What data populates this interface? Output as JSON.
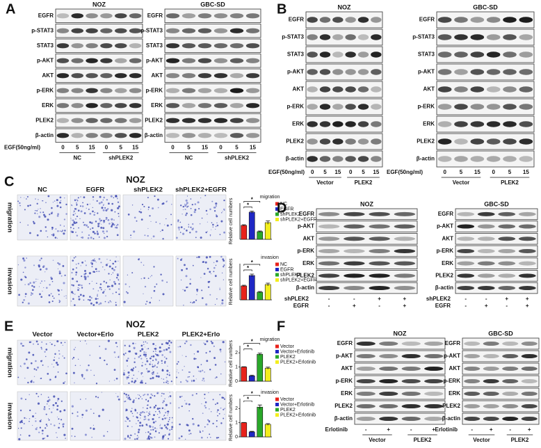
{
  "A": {
    "letter": "A",
    "blots": [
      {
        "title": "NOZ",
        "proteins": [
          "EGFR",
          "p-STAT3",
          "STAT3",
          "p-AKT",
          "AKT",
          "p-ERK",
          "ERK",
          "PLEK2",
          "β-actin"
        ],
        "treatment": "EGF(50ng/ml)",
        "lanes": [
          0,
          5,
          15,
          0,
          5,
          15
        ],
        "groups": [
          "NC",
          "shPLEK2"
        ]
      },
      {
        "title": "GBC-SD",
        "proteins": [
          "EGFR",
          "p-STAT3",
          "STAT3",
          "p-AKT",
          "AKT",
          "p-ERK",
          "ERK",
          "PLEK2",
          "β-actin"
        ],
        "lanes": [
          0,
          5,
          15,
          0,
          5,
          15
        ],
        "groups": [
          "NC",
          "shPLEK2"
        ]
      }
    ]
  },
  "B": {
    "letter": "B",
    "blots": [
      {
        "title": "NOZ",
        "proteins": [
          "EGFR",
          "p-STAT3",
          "STAT3",
          "p-AKT",
          "AKT",
          "p-ERK",
          "ERK",
          "PLEK2",
          "β-actin"
        ],
        "treatment": "EGF(50ng/ml)",
        "lanes": [
          0,
          5,
          15,
          0,
          5,
          15
        ],
        "groups": [
          "Vector",
          "PLEK2"
        ]
      },
      {
        "title": "GBC-SD",
        "proteins": [
          "EGFR",
          "p-STAT3",
          "STAT3",
          "p-AKT",
          "AKT",
          "p-ERK",
          "ERK",
          "PLEK2",
          "β-actin"
        ],
        "treatment": "EGF(50ng/ml)",
        "lanes": [
          0,
          5,
          15,
          0,
          5,
          15
        ],
        "groups": [
          "Vector",
          "PLEK2"
        ]
      }
    ]
  },
  "C": {
    "letter": "C",
    "title": "NOZ",
    "columns": [
      "NC",
      "EGFR",
      "shPLEK2",
      "shPLEK2+EGFR"
    ],
    "rows": [
      "migration",
      "invasion"
    ],
    "charts": [
      {
        "title": "migration",
        "ylabel": "Relative cell numbers",
        "categories": [
          "NC",
          "EGFR",
          "shPLEK2",
          "shPLEK2+EGFR"
        ],
        "colors": [
          "#e8221b",
          "#1f27c4",
          "#2aa82a",
          "#f3ee1e"
        ],
        "values": [
          1,
          1.95,
          0.55,
          1.2
        ],
        "errors": [
          0.05,
          0.08,
          0.05,
          0.12
        ],
        "ylim": [
          0,
          2.6
        ],
        "stars": [
          "*",
          "*"
        ]
      },
      {
        "title": "invasion",
        "ylabel": "Relative cell numbers",
        "categories": [
          "NC",
          "EGFR",
          "shPLEK2",
          "shPLEK2+EGFR"
        ],
        "colors": [
          "#e8221b",
          "#1f27c4",
          "#2aa82a",
          "#f3ee1e"
        ],
        "values": [
          1,
          1.75,
          0.55,
          1.1
        ],
        "errors": [
          0.05,
          0.1,
          0.05,
          0.1
        ],
        "ylim": [
          0,
          2.6
        ],
        "stars": [
          "*",
          "*"
        ]
      }
    ]
  },
  "D": {
    "letter": "D",
    "blots": [
      {
        "title": "NOZ",
        "proteins": [
          "EGFR",
          "p-AKT",
          "AKT",
          "p-ERK",
          "ERK",
          "PLEK2",
          "β-actin"
        ],
        "conditions": [
          {
            "name": "shPLEK2",
            "signs": [
              "-",
              "-",
              "+",
              "+"
            ]
          },
          {
            "name": "EGFR",
            "signs": [
              "-",
              "+",
              "-",
              "+"
            ]
          }
        ]
      },
      {
        "title": "GBC-SD",
        "proteins": [
          "EGFR",
          "p-AKT",
          "AKT",
          "p-ERK",
          "ERK",
          "PLEK2",
          "β-actin"
        ],
        "conditions": [
          {
            "name": "shPLEK2",
            "signs": [
              "-",
              "-",
              "+",
              "+"
            ]
          },
          {
            "name": "EGFR",
            "signs": [
              "-",
              "+",
              "-",
              "+"
            ]
          }
        ]
      }
    ]
  },
  "E": {
    "letter": "E",
    "title": "NOZ",
    "columns": [
      "Vector",
      "Vector+Erlo",
      "PLEK2",
      "PLEK2+Erlo"
    ],
    "rows": [
      "migration",
      "invasion"
    ],
    "charts": [
      {
        "title": "migration",
        "ylabel": "Relative cell numbers",
        "categories": [
          "Vector",
          "Vector+Erlotinib",
          "PLEK2",
          "PLEK2+Erlotinib"
        ],
        "colors": [
          "#e8221b",
          "#1f27c4",
          "#2aa82a",
          "#f3ee1e"
        ],
        "values": [
          1,
          0.38,
          1.9,
          0.92
        ],
        "errors": [
          0.02,
          0.05,
          0.08,
          0.07
        ],
        "ylim": [
          0,
          2.5
        ],
        "yticks": [
          0,
          1,
          2
        ],
        "stars": [
          "*",
          "*"
        ]
      },
      {
        "title": "invasion",
        "ylabel": "Relative cell numbers",
        "categories": [
          "Vector",
          "Vector+Erlotinib",
          "PLEK2",
          "PLEK2+Erlotinib"
        ],
        "colors": [
          "#e8221b",
          "#1f27c4",
          "#2aa82a",
          "#f3ee1e"
        ],
        "values": [
          1,
          0.35,
          2.1,
          0.88
        ],
        "errors": [
          0.02,
          0.04,
          0.15,
          0.06
        ],
        "ylim": [
          0,
          2.7
        ],
        "yticks": [
          0,
          1,
          2
        ],
        "stars": [
          "*",
          "*"
        ]
      }
    ]
  },
  "F": {
    "letter": "F",
    "blots": [
      {
        "title": "NOZ",
        "proteins": [
          "EGFR",
          "p-AKT",
          "AKT",
          "p-ERK",
          "ERK",
          "PLEK2",
          "β-actin"
        ],
        "conditions": [
          {
            "name": "Erlotinib",
            "signs": [
              "-",
              "+",
              "-",
              "+"
            ]
          }
        ],
        "groups": [
          "Vector",
          "PLEK2"
        ]
      },
      {
        "title": "GBC-SD",
        "proteins": [
          "EGFR",
          "p-AKT",
          "AKT",
          "p-ERK",
          "ERK",
          "PLEK2",
          "β-actin"
        ],
        "conditions": [
          {
            "name": "Erlotinib",
            "signs": [
              "-",
              "+",
              "-",
              "+"
            ]
          }
        ],
        "groups": [
          "Vector",
          "PLEK2"
        ]
      }
    ]
  }
}
